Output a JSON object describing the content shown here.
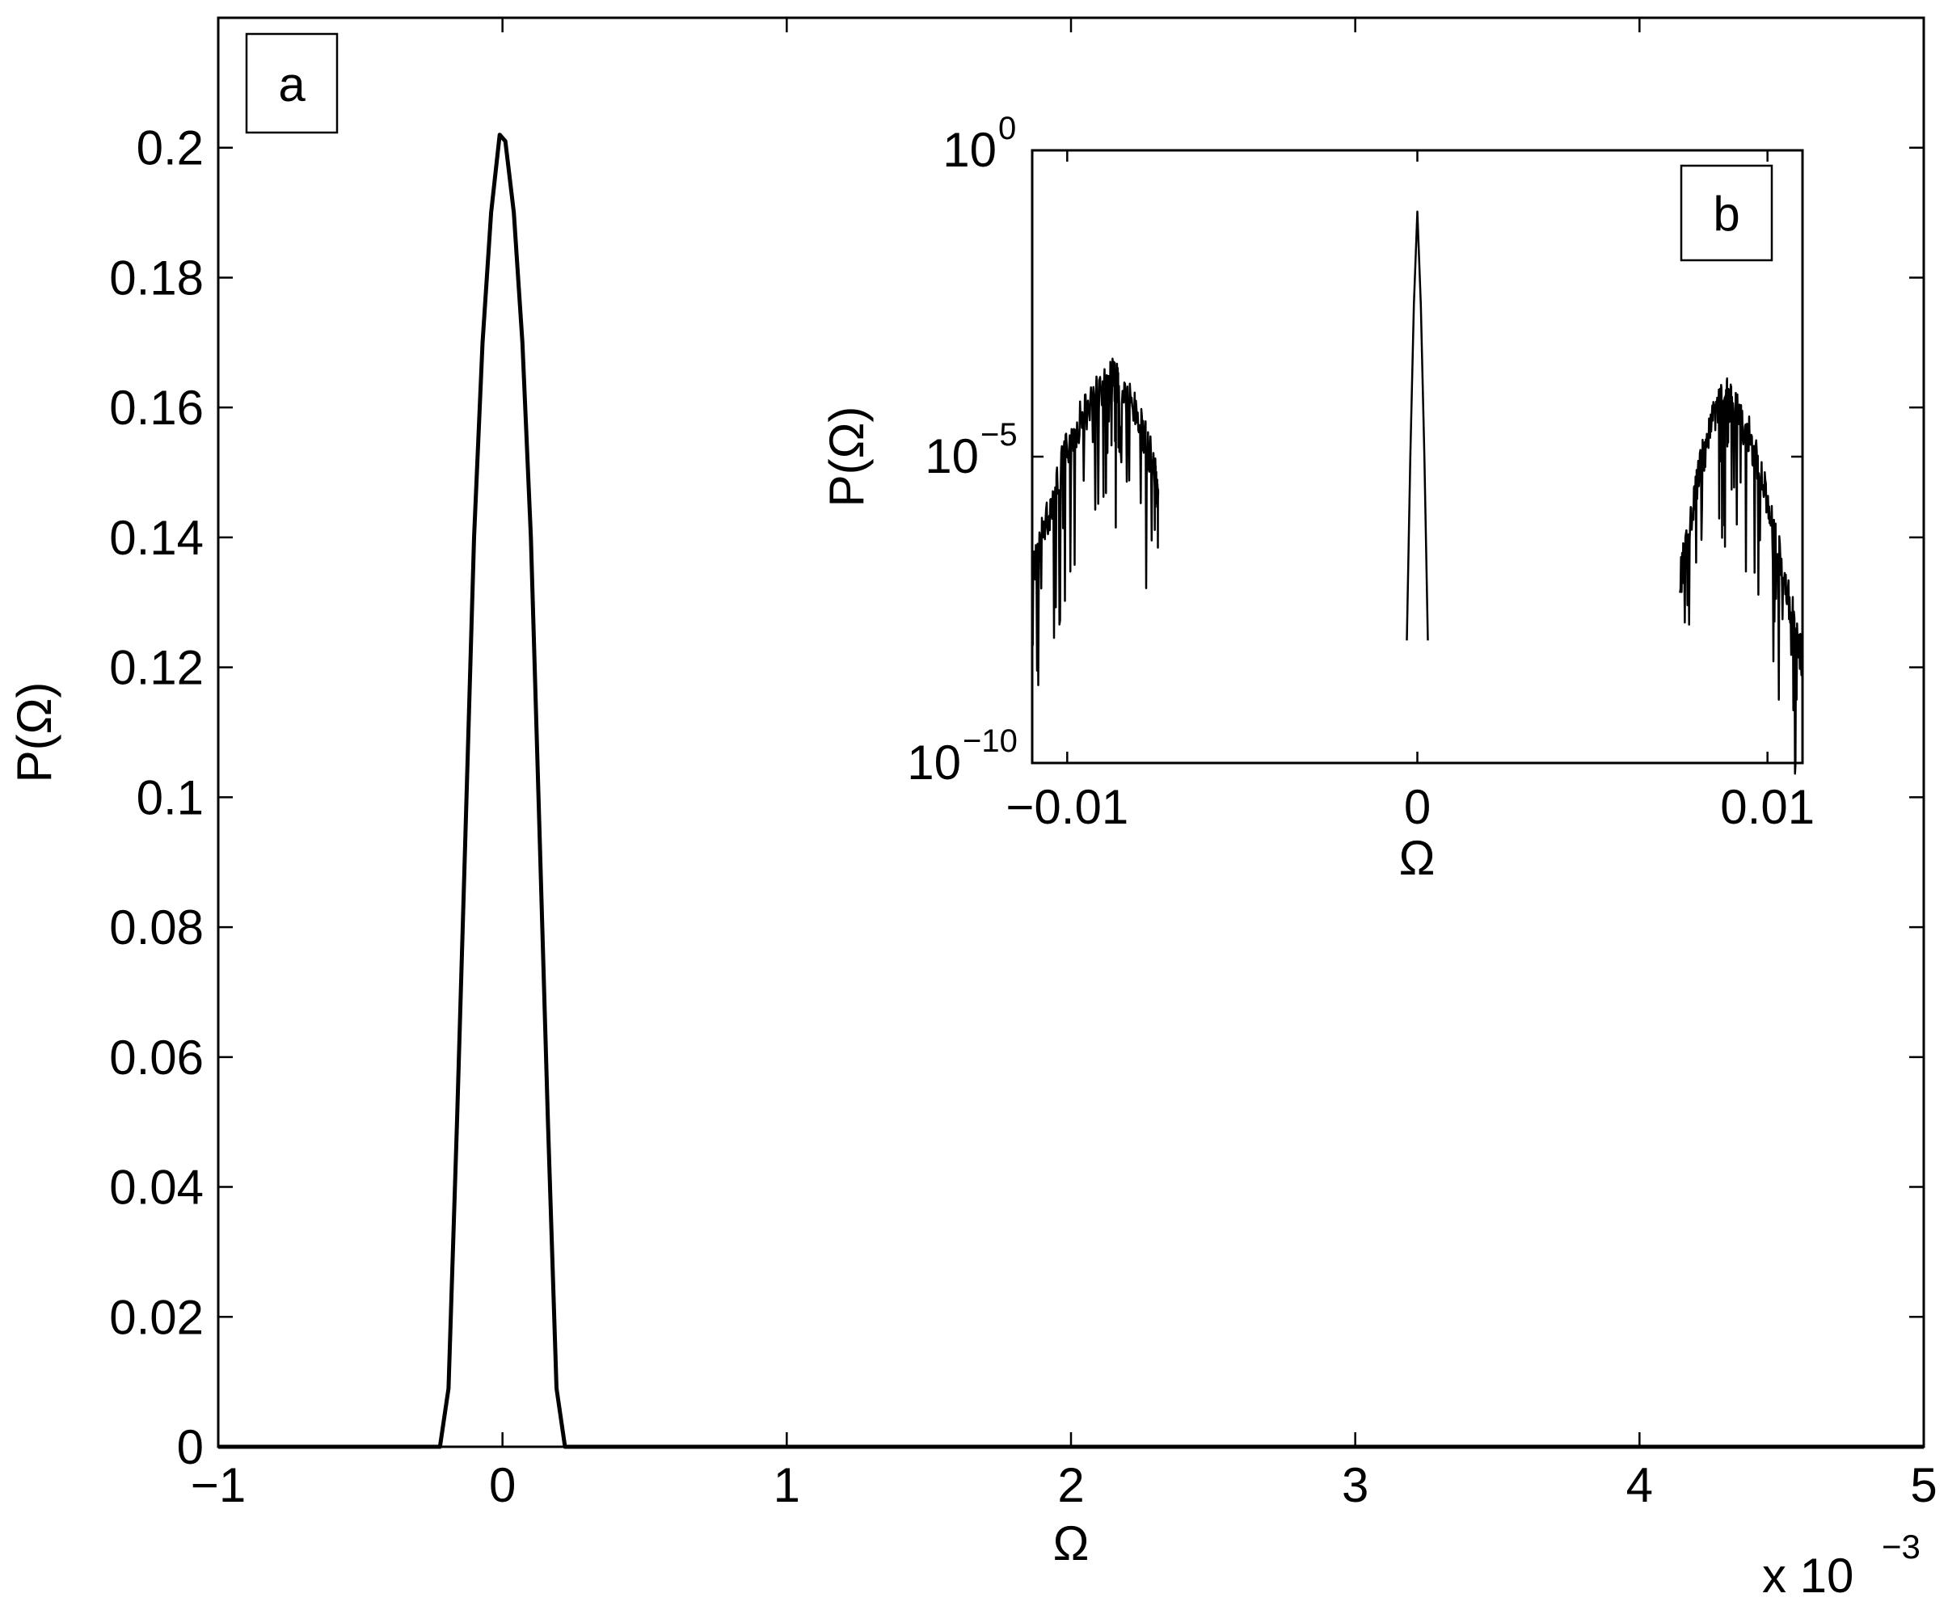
{
  "chart_data": [
    {
      "panel": "a",
      "type": "line",
      "xlabel": "Ω",
      "ylabel": "P(Ω)",
      "x_multiplier_label": "x 10",
      "x_multiplier_exponent": "−3",
      "xlim": [
        -1,
        5
      ],
      "ylim": [
        0,
        0.22
      ],
      "x_ticks": [
        -1,
        0,
        1,
        2,
        3,
        4,
        5
      ],
      "x_tick_labels": [
        "−1",
        "0",
        "1",
        "2",
        "3",
        "4",
        "5"
      ],
      "y_ticks": [
        0,
        0.02,
        0.04,
        0.06,
        0.08,
        0.1,
        0.12,
        0.14,
        0.16,
        0.18,
        0.2
      ],
      "y_tick_labels": [
        "0",
        "0.02",
        "0.04",
        "0.06",
        "0.08",
        "0.1",
        "0.12",
        "0.14",
        "0.16",
        "0.18",
        "0.2"
      ],
      "grid": false,
      "series": [
        {
          "x": [
            -1.0,
            -0.5,
            -0.32,
            -0.22,
            -0.19,
            -0.16,
            -0.13,
            -0.1,
            -0.07,
            -0.04,
            -0.01,
            0.01,
            0.04,
            0.07,
            0.1,
            0.13,
            0.16,
            0.19,
            0.22,
            0.32,
            0.5,
            1.0,
            2.0,
            3.0,
            4.0,
            5.0
          ],
          "values": [
            0,
            0,
            0,
            0,
            0.009,
            0.05,
            0.095,
            0.14,
            0.17,
            0.19,
            0.202,
            0.201,
            0.19,
            0.17,
            0.14,
            0.095,
            0.05,
            0.009,
            0,
            0,
            0,
            0,
            0,
            0,
            0,
            0
          ]
        }
      ]
    },
    {
      "panel": "b",
      "type": "line",
      "xlabel": "Ω",
      "ylabel": "P(Ω)",
      "y_scale": "log",
      "xlim": [
        -0.011,
        0.011
      ],
      "ylim": [
        1e-10,
        1
      ],
      "x_ticks": [
        -0.01,
        0,
        0.01
      ],
      "x_tick_labels": [
        "−0.01",
        "0",
        "0.01"
      ],
      "y_ticks": [
        1e-10,
        1e-05,
        1
      ],
      "y_tick_base": "10",
      "y_tick_exponents": [
        "−10",
        "−5",
        "0"
      ],
      "grid": false,
      "series": [
        {
          "x": [
            -0.011,
            -0.0105,
            -0.01,
            -0.0095,
            -0.009,
            -0.0087,
            -0.0085,
            -0.008,
            -0.0075,
            -0.0074
          ],
          "values": [
            3e-07,
            3e-06,
            3e-05,
            0.00012,
            0.0003,
            0.0004,
            0.0003,
            0.0001,
            1.5e-05,
            3e-06
          ]
        },
        {
          "x": [
            -0.0003,
            -0.0002,
            -0.0001,
            0,
            0.0001,
            0.0002,
            0.0003
          ],
          "values": [
            1e-08,
            1e-05,
            0.003,
            0.1,
            0.003,
            1e-05,
            1e-08
          ]
        },
        {
          "x": [
            0.0075,
            0.008,
            0.0085,
            0.0088,
            0.009,
            0.0095,
            0.01,
            0.0105,
            0.011
          ],
          "values": [
            2e-07,
            1e-05,
            0.0001,
            0.00022,
            0.00015,
            5e-05,
            5e-06,
            2e-07,
            1e-08
          ]
        }
      ]
    }
  ]
}
